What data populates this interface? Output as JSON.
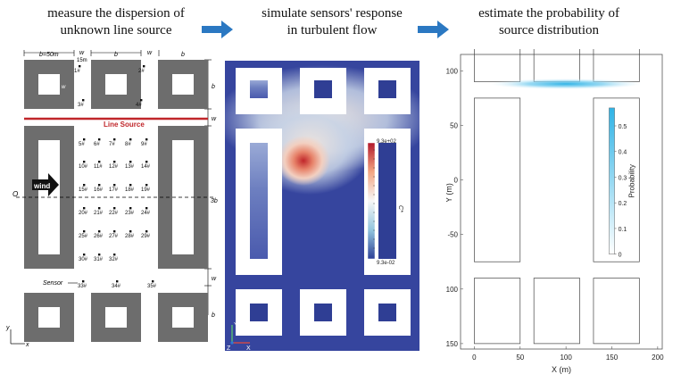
{
  "stages": [
    {
      "line1": "measure the dispersion of",
      "line2": "unknown line source"
    },
    {
      "line1": "simulate sensors' response",
      "line2": "in turbulent flow"
    },
    {
      "line1": "estimate the probability of",
      "line2": "source distribution"
    }
  ],
  "colors": {
    "arrow": "#2b78c2",
    "block": "#6d6d6d",
    "line_source": "#c0262a",
    "flow_bg": "#36459e",
    "prob": "#2fb3e6"
  },
  "layout_panel": {
    "dims": {
      "b_left": "b=50m",
      "w_top": "w",
      "w_sub": "15m",
      "b_mid": "b",
      "w_mid": "w",
      "b_right": "b",
      "right_b_top": "b",
      "right_w1": "w",
      "right_3b": "3b",
      "right_w2": "w",
      "right_b_bot": "b",
      "block_w": "w"
    },
    "line_source_label": "Line Source",
    "wind_label": "wind",
    "origin_label": "O",
    "sensor_label": "Sensor",
    "axis_x": "x",
    "axis_y": "y",
    "top_sensors": [
      "1#",
      "2#",
      "3#",
      "4#"
    ],
    "grid_sensors": [
      "5#",
      "6#",
      "7#",
      "8#",
      "9#",
      "10#",
      "11#",
      "12#",
      "13#",
      "14#",
      "15#",
      "16#",
      "17#",
      "18#",
      "19#",
      "20#",
      "21#",
      "22#",
      "23#",
      "24#",
      "25#",
      "26#",
      "27#",
      "28#",
      "29#",
      "30#",
      "31#",
      "32#"
    ],
    "bottom_sensors": [
      "33#",
      "34#",
      "35#"
    ]
  },
  "flow_panel": {
    "colorbar_max": "9.3e+02",
    "colorbar_min": "9.3e-02",
    "colorbar_label": "C*",
    "axis_y": "Y",
    "axis_z": "Z",
    "axis_x": "X"
  },
  "chart_data": {
    "type": "heatmap",
    "xlabel": "X (m)",
    "ylabel": "Y (m)",
    "xticks": [
      "0",
      "50",
      "100",
      "150",
      "200"
    ],
    "yticks": [
      "100",
      "50",
      "0",
      "-50",
      "-100",
      "-150"
    ],
    "xlim": [
      -15,
      205
    ],
    "ylim": [
      -155,
      115
    ],
    "colorbar_label": "Probability",
    "colorbar_ticks": [
      "0.5",
      "0.4",
      "0.3",
      "0.2",
      "0.1",
      "0"
    ],
    "colorbar_range": [
      0,
      0.57
    ],
    "source_band": {
      "x_from": 5,
      "x_to": 195,
      "y": 88,
      "peak_x": 100,
      "peak_probability": 0.55
    },
    "buildings": [
      {
        "x0": 0,
        "x1": 50,
        "y0": 90,
        "y1": 140
      },
      {
        "x0": 65,
        "x1": 115,
        "y0": 90,
        "y1": 140
      },
      {
        "x0": 130,
        "x1": 180,
        "y0": 90,
        "y1": 140
      },
      {
        "x0": 0,
        "x1": 50,
        "y0": -75,
        "y1": 75
      },
      {
        "x0": 130,
        "x1": 180,
        "y0": -75,
        "y1": 75
      },
      {
        "x0": 0,
        "x1": 50,
        "y0": -150,
        "y1": -90
      },
      {
        "x0": 65,
        "x1": 115,
        "y0": -150,
        "y1": -90
      },
      {
        "x0": 130,
        "x1": 180,
        "y0": -150,
        "y1": -90
      }
    ]
  }
}
